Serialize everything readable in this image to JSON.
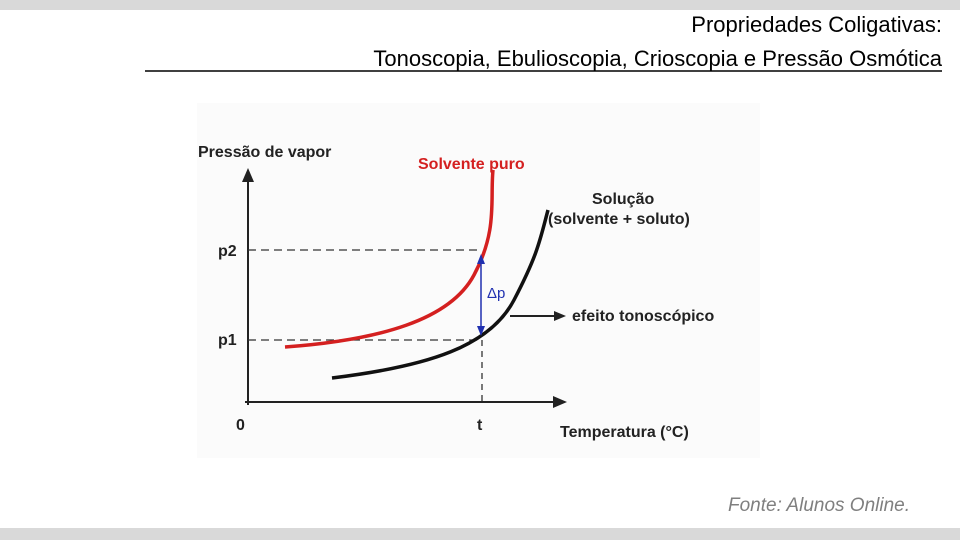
{
  "header": {
    "title_line1": "Propriedades Coligativas:",
    "title_line2": "Tonoscopia, Ebulioscopia, Crioscopia e Pressão Osmótica"
  },
  "diagram": {
    "y_axis_label": "Pressão de vapor",
    "x_axis_label": "Temperatura (°C)",
    "pure_solvent_label": "Solvente puro",
    "solution_label_line1": "Solução",
    "solution_label_line2": "(solvente + soluto)",
    "y_ticks": [
      "p2",
      "p1"
    ],
    "x_ticks": [
      "0",
      "t"
    ],
    "delta_label": "Δp",
    "effect_label": "efeito tonoscópico"
  },
  "source": "Fonte:  Alunos Online."
}
